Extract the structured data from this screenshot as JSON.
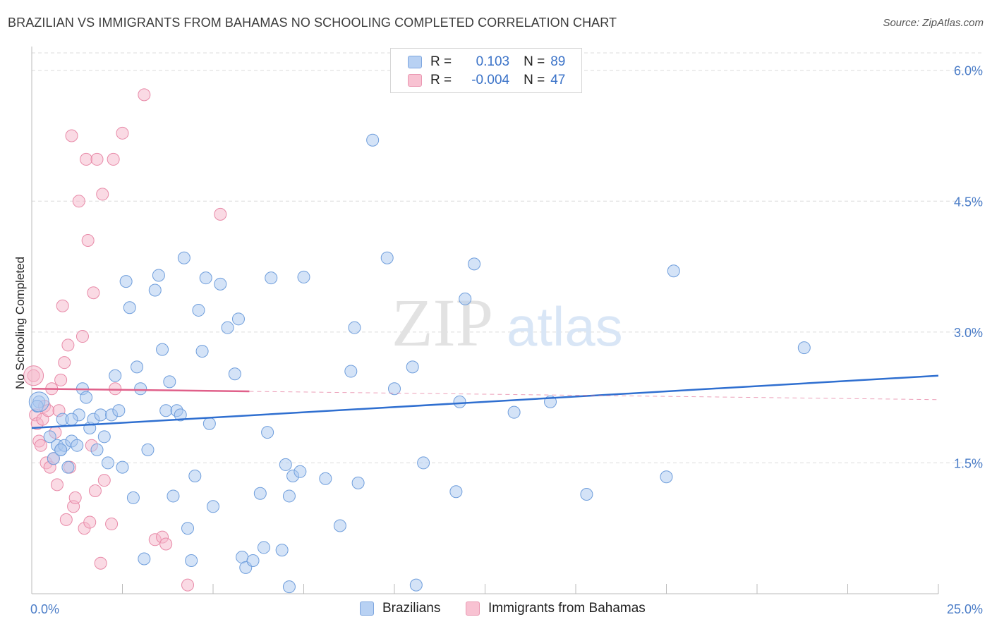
{
  "title": "BRAZILIAN VS IMMIGRANTS FROM BAHAMAS NO SCHOOLING COMPLETED CORRELATION CHART",
  "source": "Source: ZipAtlas.com",
  "watermark": {
    "zip": "ZIP",
    "atlas": "atlas"
  },
  "legend": {
    "row1": {
      "r_label": "R =",
      "r_value": "0.103",
      "n_label": "N =",
      "n_value": "89"
    },
    "row2": {
      "r_label": "R =",
      "r_value": "-0.004",
      "n_label": "N =",
      "n_value": "47"
    }
  },
  "bottom_legend": {
    "series1": "Brazilians",
    "series2": "Immigrants from Bahamas"
  },
  "colors": {
    "blue_fill": "#a9c8f0",
    "blue_stroke": "#6f9edc",
    "blue_line": "#2f6fd0",
    "pink_fill": "#f6b6c9",
    "pink_stroke": "#e88aa8",
    "pink_line": "#e0608a",
    "tick_text": "#4a7cc7",
    "grid": "#dcdcdc"
  },
  "chart_data": {
    "type": "scatter",
    "title": "BRAZILIAN VS IMMIGRANTS FROM BAHAMAS NO SCHOOLING COMPLETED CORRELATION CHART",
    "xlabel": "",
    "ylabel": "No Schooling Completed",
    "xlim": [
      0,
      25
    ],
    "ylim": [
      0,
      6.2
    ],
    "x_tick_labels": [
      "0.0%",
      "25.0%"
    ],
    "y_ticks": [
      1.5,
      3.0,
      4.5,
      6.0
    ],
    "y_tick_labels": [
      "1.5%",
      "3.0%",
      "4.5%",
      "6.0%"
    ],
    "grid": true,
    "legend_position": "top-center",
    "series": [
      {
        "name": "Brazilians",
        "r": 0.103,
        "n": 89,
        "trend": {
          "x": [
            0,
            25
          ],
          "y": [
            1.9,
            2.5
          ]
        },
        "points": [
          [
            0.2,
            2.2
          ],
          [
            0.5,
            1.8
          ],
          [
            0.6,
            1.55
          ],
          [
            0.7,
            1.7
          ],
          [
            0.8,
            1.65
          ],
          [
            0.9,
            1.7
          ],
          [
            0.8,
            1.65
          ],
          [
            0.85,
            2.0
          ],
          [
            1.0,
            1.45
          ],
          [
            1.1,
            1.75
          ],
          [
            1.25,
            1.7
          ],
          [
            1.3,
            2.05
          ],
          [
            1.4,
            2.35
          ],
          [
            1.5,
            2.25
          ],
          [
            1.6,
            1.9
          ],
          [
            1.7,
            2.0
          ],
          [
            1.8,
            1.65
          ],
          [
            1.9,
            2.05
          ],
          [
            2.0,
            1.8
          ],
          [
            2.1,
            1.5
          ],
          [
            2.2,
            2.05
          ],
          [
            2.3,
            2.5
          ],
          [
            2.4,
            2.1
          ],
          [
            2.5,
            1.45
          ],
          [
            2.6,
            3.58
          ],
          [
            2.7,
            3.28
          ],
          [
            2.8,
            1.1
          ],
          [
            2.9,
            2.6
          ],
          [
            3.0,
            2.35
          ],
          [
            3.1,
            0.4
          ],
          [
            3.2,
            1.65
          ],
          [
            3.4,
            3.48
          ],
          [
            3.5,
            3.65
          ],
          [
            3.6,
            2.8
          ],
          [
            3.7,
            2.1
          ],
          [
            3.8,
            2.43
          ],
          [
            3.9,
            1.12
          ],
          [
            4.0,
            2.1
          ],
          [
            4.1,
            2.05
          ],
          [
            4.2,
            3.85
          ],
          [
            4.3,
            0.75
          ],
          [
            4.4,
            0.38
          ],
          [
            4.5,
            1.35
          ],
          [
            4.6,
            3.25
          ],
          [
            4.7,
            2.78
          ],
          [
            4.8,
            3.62
          ],
          [
            4.9,
            1.95
          ],
          [
            5.0,
            1.0
          ],
          [
            5.2,
            3.55
          ],
          [
            5.4,
            3.05
          ],
          [
            5.6,
            2.52
          ],
          [
            5.7,
            3.15
          ],
          [
            5.8,
            0.42
          ],
          [
            5.9,
            0.3
          ],
          [
            6.1,
            0.38
          ],
          [
            6.3,
            1.15
          ],
          [
            6.4,
            0.53
          ],
          [
            6.5,
            1.85
          ],
          [
            6.6,
            3.62
          ],
          [
            6.9,
            0.5
          ],
          [
            7.0,
            1.48
          ],
          [
            7.1,
            0.08
          ],
          [
            7.1,
            1.12
          ],
          [
            7.2,
            1.35
          ],
          [
            7.4,
            1.4
          ],
          [
            7.5,
            3.63
          ],
          [
            8.1,
            1.32
          ],
          [
            8.5,
            0.78
          ],
          [
            8.8,
            2.55
          ],
          [
            8.9,
            3.05
          ],
          [
            9.0,
            1.27
          ],
          [
            9.4,
            5.2
          ],
          [
            9.8,
            3.85
          ],
          [
            10.0,
            2.35
          ],
          [
            10.5,
            2.6
          ],
          [
            10.6,
            0.1
          ],
          [
            10.8,
            1.5
          ],
          [
            11.7,
            1.17
          ],
          [
            11.8,
            2.2
          ],
          [
            11.95,
            3.38
          ],
          [
            12.2,
            3.78
          ],
          [
            13.3,
            2.08
          ],
          [
            14.3,
            2.2
          ],
          [
            15.3,
            1.14
          ],
          [
            17.5,
            1.34
          ],
          [
            17.7,
            3.7
          ],
          [
            21.3,
            2.82
          ],
          [
            0.15,
            2.15
          ],
          [
            1.1,
            2.0
          ]
        ]
      },
      {
        "name": "Immigrants from Bahamas",
        "r": -0.004,
        "n": 47,
        "trend": {
          "x": [
            0,
            6
          ],
          "y": [
            2.35,
            2.32
          ]
        },
        "points": [
          [
            0.05,
            2.5
          ],
          [
            0.1,
            2.05
          ],
          [
            0.15,
            1.95
          ],
          [
            0.2,
            1.75
          ],
          [
            0.3,
            2.0
          ],
          [
            0.35,
            2.15
          ],
          [
            0.4,
            1.5
          ],
          [
            0.45,
            2.1
          ],
          [
            0.5,
            1.45
          ],
          [
            0.55,
            2.35
          ],
          [
            0.6,
            1.55
          ],
          [
            0.65,
            1.85
          ],
          [
            0.7,
            1.25
          ],
          [
            0.75,
            2.1
          ],
          [
            0.8,
            2.45
          ],
          [
            0.85,
            3.3
          ],
          [
            0.9,
            2.65
          ],
          [
            0.95,
            0.85
          ],
          [
            1.0,
            2.85
          ],
          [
            1.05,
            1.45
          ],
          [
            1.1,
            5.25
          ],
          [
            1.15,
            1.0
          ],
          [
            1.2,
            1.1
          ],
          [
            1.3,
            4.5
          ],
          [
            1.4,
            2.95
          ],
          [
            1.45,
            0.75
          ],
          [
            1.5,
            4.98
          ],
          [
            1.55,
            4.05
          ],
          [
            1.6,
            0.82
          ],
          [
            1.65,
            1.7
          ],
          [
            1.7,
            3.45
          ],
          [
            1.75,
            1.18
          ],
          [
            1.8,
            4.98
          ],
          [
            1.9,
            0.35
          ],
          [
            1.95,
            4.58
          ],
          [
            2.0,
            1.3
          ],
          [
            2.2,
            0.8
          ],
          [
            2.25,
            4.98
          ],
          [
            2.3,
            2.35
          ],
          [
            2.5,
            5.28
          ],
          [
            3.1,
            5.72
          ],
          [
            3.4,
            0.62
          ],
          [
            3.6,
            0.65
          ],
          [
            3.7,
            0.57
          ],
          [
            4.3,
            0.1
          ],
          [
            5.2,
            4.35
          ],
          [
            0.25,
            1.7
          ]
        ]
      }
    ]
  }
}
